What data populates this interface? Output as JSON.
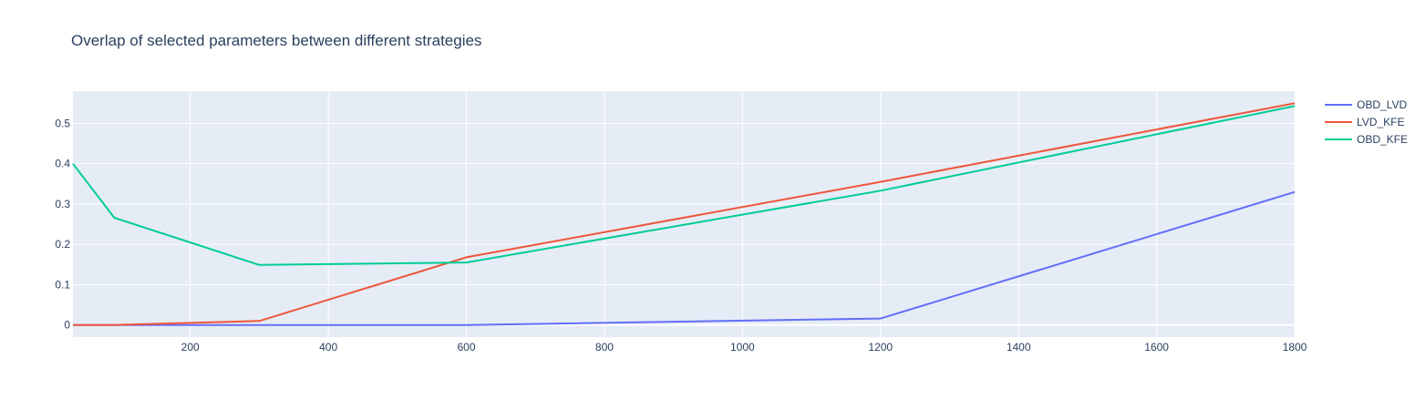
{
  "chart_data": {
    "type": "line",
    "title": "Overlap of selected parameters between different strategies",
    "xlabel": "",
    "ylabel": "",
    "xlim": [
      30,
      1800
    ],
    "ylim": [
      -0.03,
      0.58
    ],
    "x_ticks": [
      200,
      400,
      600,
      800,
      1000,
      1200,
      1400,
      1600,
      1800
    ],
    "y_ticks": [
      0,
      0.1,
      0.2,
      0.3,
      0.4,
      0.5
    ],
    "y_tick_labels": [
      "0",
      "0.1",
      "0.2",
      "0.3",
      "0.4",
      "0.5"
    ],
    "grid": true,
    "legend_position": "top-right",
    "series": [
      {
        "name": "OBD_LVD",
        "color": "#636efa",
        "x": [
          30,
          90,
          300,
          600,
          1200,
          1800
        ],
        "y": [
          0.0,
          0.0,
          0.0,
          0.0,
          0.016,
          0.33
        ]
      },
      {
        "name": "LVD_KFE",
        "color": "#ef553b",
        "x": [
          30,
          90,
          300,
          600,
          1200,
          1800
        ],
        "y": [
          0.0,
          0.0,
          0.01,
          0.168,
          0.355,
          0.55
        ]
      },
      {
        "name": "OBD_KFE",
        "color": "#00cc96",
        "x": [
          30,
          90,
          300,
          600,
          1200,
          1800
        ],
        "y": [
          0.4,
          0.266,
          0.149,
          0.155,
          0.333,
          0.543
        ]
      }
    ]
  }
}
